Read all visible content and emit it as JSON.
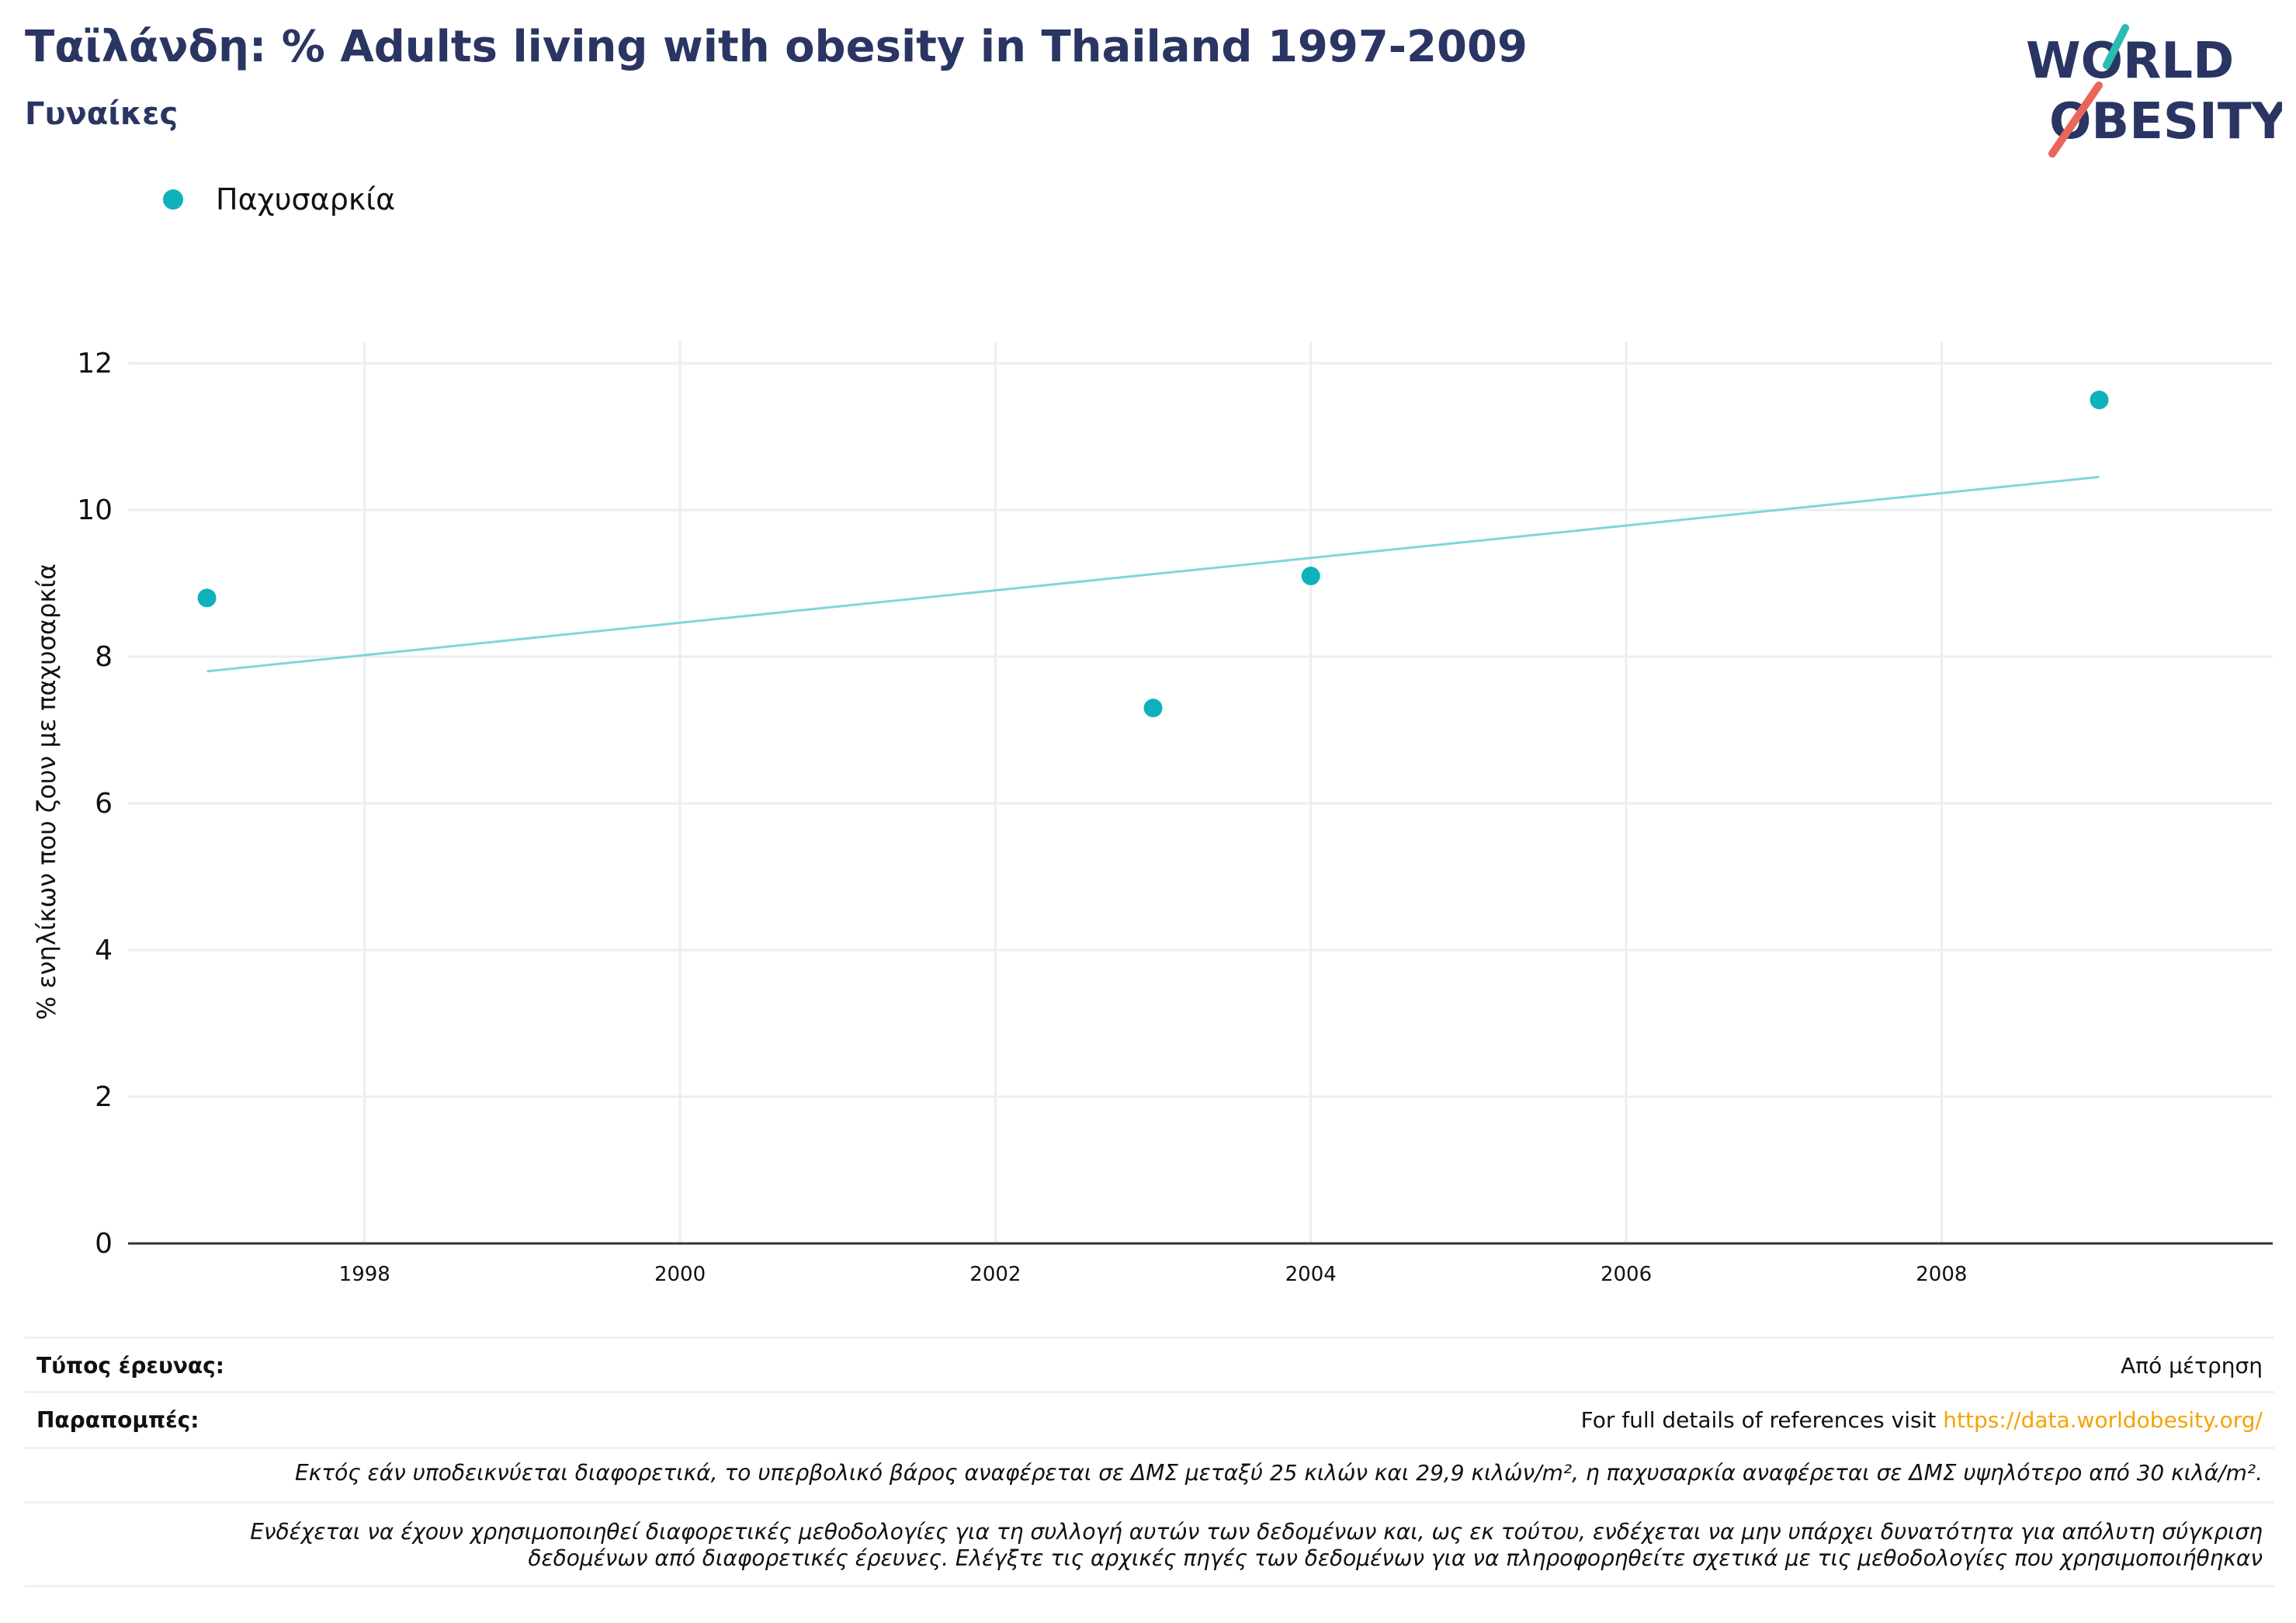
{
  "header": {
    "title": "Ταϊλάνδη: % Adults living with obesity in Thailand 1997-2009",
    "subtitle": "Γυναίκες"
  },
  "logo": {
    "line1": "WORLD",
    "line2": "OBESITY",
    "text_color": "#2a3563",
    "accent_teal": "#2bbbb3",
    "accent_red": "#e8665a"
  },
  "legend": {
    "label": "Παχυσαρκία",
    "color": "#0fb1bd"
  },
  "chart_data": {
    "type": "scatter",
    "ylabel": "% ενηλίκων που ζουν με παχυσαρκία",
    "xlabel": "",
    "ylim": [
      0,
      12
    ],
    "xlim": [
      1996.5,
      2010.1
    ],
    "y_ticks": [
      "0",
      "2",
      "4",
      "6",
      "8",
      "10",
      "12"
    ],
    "x_ticks": [
      "1998",
      "2000",
      "2002",
      "2004",
      "2006",
      "2008"
    ],
    "grid": true,
    "series": [
      {
        "name": "Παχυσαρκία",
        "color": "#0fb1bd",
        "points": [
          {
            "x": 1997,
            "y": 8.8
          },
          {
            "x": 2003,
            "y": 7.3
          },
          {
            "x": 2004,
            "y": 9.1
          },
          {
            "x": 2009,
            "y": 11.5
          }
        ]
      }
    ],
    "trendline": {
      "color": "#7fd6da",
      "start": {
        "x": 1997,
        "y": 7.8
      },
      "end": {
        "x": 2009,
        "y": 10.45
      }
    }
  },
  "footer": {
    "survey_type_label": "Τύπος έρευνας:",
    "survey_type_value": "Από μέτρηση",
    "references_label": "Παραπομπές:",
    "references_text": "For full details of references visit ",
    "references_link": "https://data.worldobesity.org/",
    "note1": "Εκτός εάν υποδεικνύεται διαφορετικά, το υπερβολικό βάρος αναφέρεται σε ΔΜΣ μεταξύ 25 κιλών και 29,9 κιλών/m², η παχυσαρκία αναφέρεται σε ΔΜΣ υψηλότερο από 30 κιλά/m².",
    "note2_line1": "Ενδέχεται να έχουν χρησιμοποιηθεί διαφορετικές μεθοδολογίες για τη συλλογή αυτών των δεδομένων και, ως εκ τούτου, ενδέχεται να μην υπάρχει δυνατότητα για απόλυτη σύγκριση",
    "note2_line2": "δεδομένων από διαφορετικές έρευνες. Ελέγξτε τις αρχικές πηγές των δεδομένων για να πληροφορηθείτε σχετικά με τις μεθοδολογίες που χρησιμοποιήθηκαν"
  }
}
